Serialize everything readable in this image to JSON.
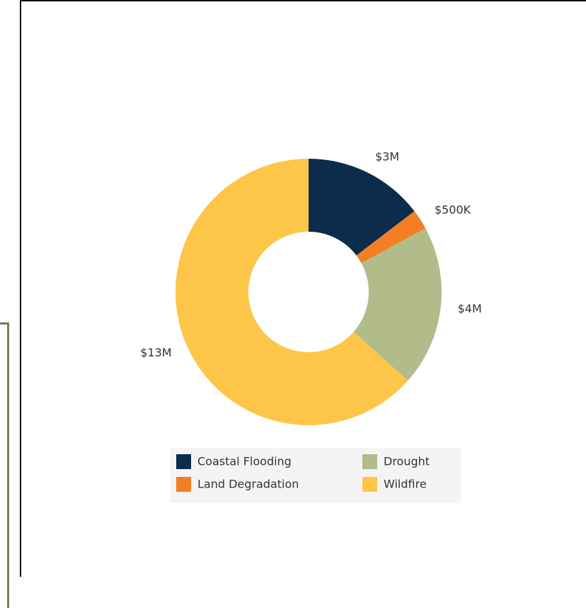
{
  "chart_data": {
    "type": "donut",
    "categories": [
      "Coastal Flooding",
      "Land Degradation",
      "Drought",
      "Wildfire"
    ],
    "values": [
      3000000,
      500000,
      4000000,
      13000000
    ],
    "value_labels": [
      "$3M",
      "$500K",
      "$4M",
      "$13M"
    ],
    "colors": [
      "#0c2c4b",
      "#f47e22",
      "#b2bc8b",
      "#fec649"
    ],
    "legend": "bottom"
  }
}
